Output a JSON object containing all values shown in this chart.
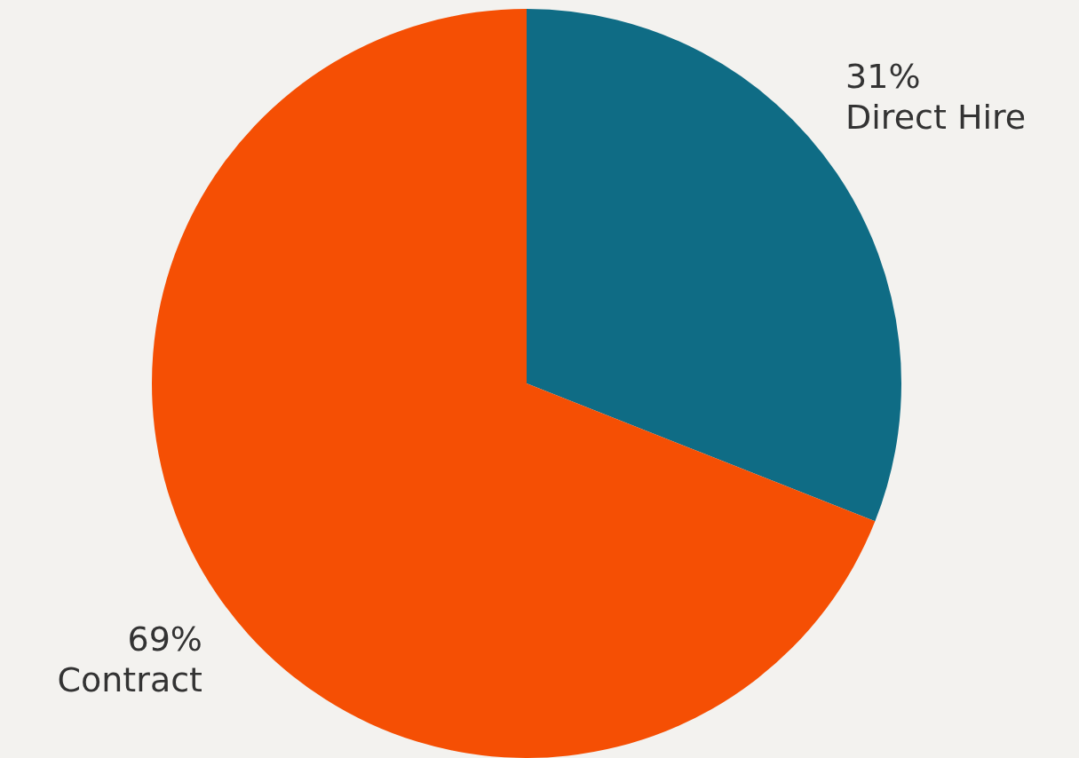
{
  "chart_data": {
    "type": "pie",
    "categories": [
      "Direct Hire",
      "Contract"
    ],
    "values": [
      31,
      69
    ],
    "colors": [
      "#0f6c85",
      "#f54f04"
    ],
    "value_labels": [
      "31%",
      "69%"
    ],
    "legend": false
  }
}
